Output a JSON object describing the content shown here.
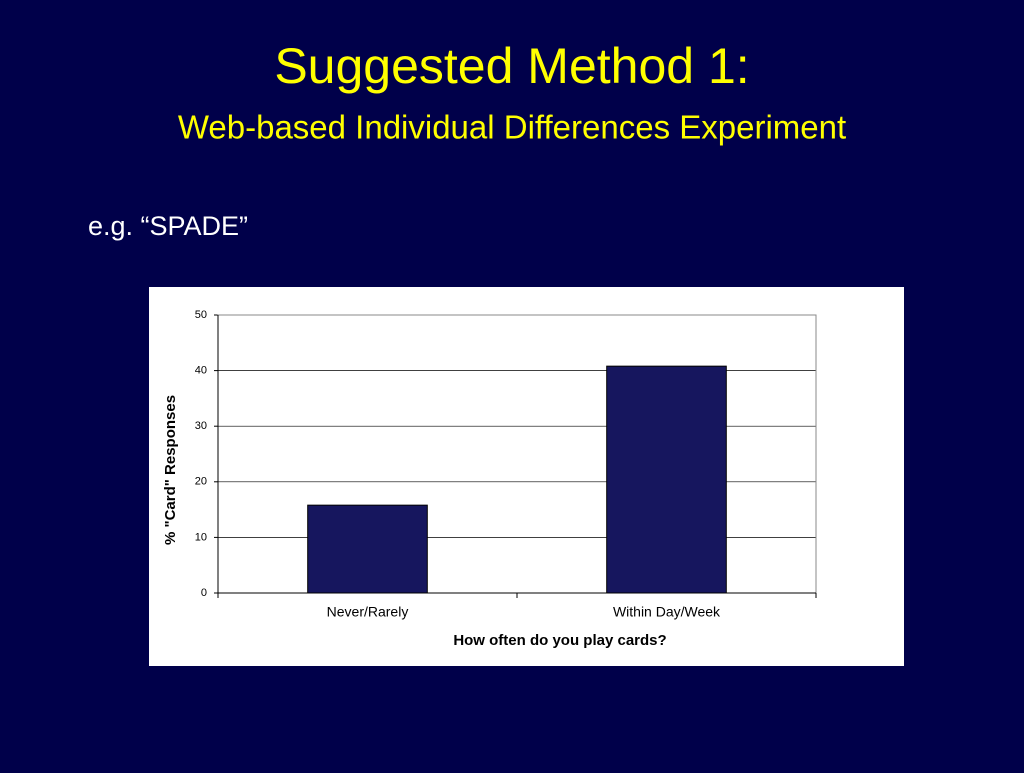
{
  "slide": {
    "title": "Suggested Method 1:",
    "subtitle": "Web-based Individual Differences Experiment",
    "bullet": "e.g. “SPADE”"
  },
  "chart_data": {
    "type": "bar",
    "categories": [
      "Never/Rarely",
      "Within Day/Week"
    ],
    "values": [
      15.8,
      40.8
    ],
    "color": "#16165e",
    "ylim": [
      0,
      50
    ],
    "yticks": [
      0,
      10,
      20,
      30,
      40,
      50
    ],
    "grid": true,
    "xlabel": "How often do you play cards?",
    "ylabel": "% \"Card\" Responses"
  }
}
